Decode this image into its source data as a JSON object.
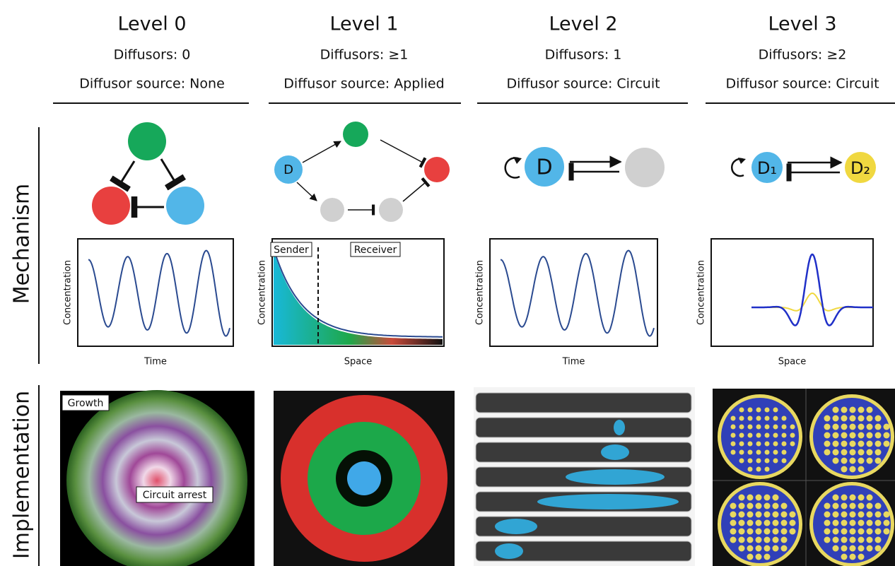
{
  "columns": [
    {
      "title": "Level 0",
      "diffusors": "Diffusors: 0",
      "source": "Diffusor source: None",
      "xlabel": "Time",
      "ylabel": "Concentration"
    },
    {
      "title": "Level 1",
      "diffusors": "Diffusors: ≥1",
      "source": "Diffusor source: Applied",
      "xlabel": "Space",
      "ylabel": "Concentration"
    },
    {
      "title": "Level 2",
      "diffusors": "Diffusors: 1",
      "source": "Diffusor source: Circuit",
      "xlabel": "Time",
      "ylabel": "Concentration"
    },
    {
      "title": "Level 3",
      "diffusors": "Diffusors: ≥2",
      "source": "Diffusor source: Circuit",
      "xlabel": "Space",
      "ylabel": "Concentration"
    }
  ],
  "rows": [
    "Mechanism",
    "Implementation"
  ],
  "nodes": {
    "level1_d": "D",
    "level2_d": "D",
    "level3_d1": "D₁",
    "level3_d2": "D₂"
  },
  "annotations": {
    "sender": "Sender",
    "receiver": "Receiver",
    "growth": "Growth",
    "arrest": "Circuit arrest"
  }
}
